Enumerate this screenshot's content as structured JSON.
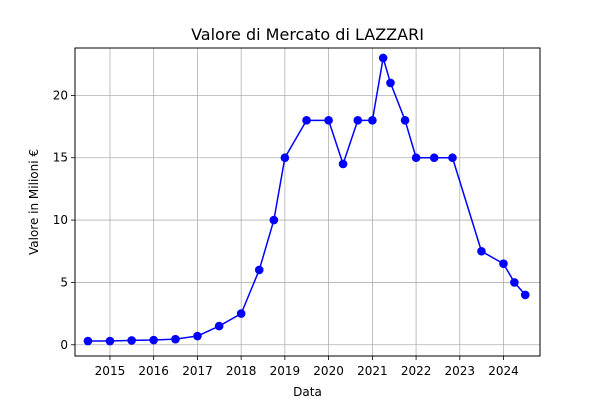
{
  "chart_data": {
    "type": "line",
    "title": "Valore di Mercato di LAZZARI",
    "xlabel": "Data",
    "ylabel": "Valore in Milioni €",
    "x_ticks": [
      "2015",
      "2016",
      "2017",
      "2018",
      "2019",
      "2020",
      "2021",
      "2022",
      "2023",
      "2024"
    ],
    "y_ticks": [
      "0",
      "5",
      "10",
      "15",
      "20"
    ],
    "xlim": [
      "2014-03-15",
      "2024-11-01"
    ],
    "ylim": [
      -0.9,
      23.8
    ],
    "grid": true,
    "series": [
      {
        "color": "#0000ff",
        "marker": "circle",
        "points": [
          {
            "x": "2014-07-01",
            "y": 0.3
          },
          {
            "x": "2015-01-01",
            "y": 0.3
          },
          {
            "x": "2015-07-01",
            "y": 0.35
          },
          {
            "x": "2016-01-01",
            "y": 0.38
          },
          {
            "x": "2016-07-01",
            "y": 0.45
          },
          {
            "x": "2017-01-01",
            "y": 0.7
          },
          {
            "x": "2017-07-01",
            "y": 1.5
          },
          {
            "x": "2018-01-01",
            "y": 2.5
          },
          {
            "x": "2018-06-01",
            "y": 6.0
          },
          {
            "x": "2018-10-01",
            "y": 10.0
          },
          {
            "x": "2019-01-01",
            "y": 15.0
          },
          {
            "x": "2019-07-01",
            "y": 18.0
          },
          {
            "x": "2020-01-01",
            "y": 18.0
          },
          {
            "x": "2020-05-01",
            "y": 14.5
          },
          {
            "x": "2020-09-01",
            "y": 18.0
          },
          {
            "x": "2021-01-01",
            "y": 18.0
          },
          {
            "x": "2021-04-01",
            "y": 23.0
          },
          {
            "x": "2021-06-01",
            "y": 21.0
          },
          {
            "x": "2021-10-01",
            "y": 18.0
          },
          {
            "x": "2022-01-01",
            "y": 15.0
          },
          {
            "x": "2022-06-01",
            "y": 15.0
          },
          {
            "x": "2022-11-01",
            "y": 15.0
          },
          {
            "x": "2023-07-01",
            "y": 7.5
          },
          {
            "x": "2024-01-01",
            "y": 6.5
          },
          {
            "x": "2024-04-01",
            "y": 5.0
          },
          {
            "x": "2024-07-01",
            "y": 4.0
          }
        ]
      }
    ]
  }
}
